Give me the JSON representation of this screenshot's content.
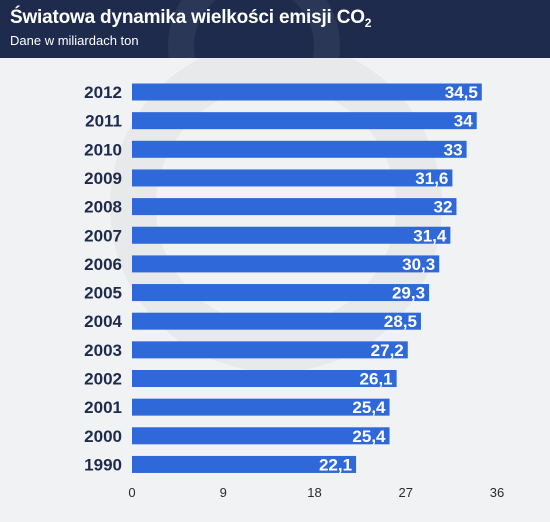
{
  "header": {
    "title_main": "Światowa dynamika wielkości emisji CO",
    "title_sub": "2",
    "subtitle": "Dane w miliardach ton"
  },
  "colors": {
    "bar": "#2f68d8",
    "header_bg": "#1e2b4d",
    "background": "#f1f2f3",
    "label_text": "#1e2b4d",
    "value_text": "#ffffff"
  },
  "chart_data": {
    "type": "bar",
    "orientation": "horizontal",
    "title": "Światowa dynamika wielkości emisji CO2",
    "subtitle": "Dane w miliardach ton",
    "categories": [
      "2012",
      "2011",
      "2010",
      "2009",
      "2008",
      "2007",
      "2006",
      "2005",
      "2004",
      "2003",
      "2002",
      "2001",
      "2000",
      "1990"
    ],
    "values": [
      34.5,
      34,
      33,
      31.6,
      32,
      31.4,
      30.3,
      29.3,
      28.5,
      27.2,
      26.1,
      25.4,
      25.4,
      22.1
    ],
    "value_labels": [
      "34,5",
      "34",
      "33",
      "31,6",
      "32",
      "31,4",
      "30,3",
      "29,3",
      "28,5",
      "27,2",
      "26,1",
      "25,4",
      "25,4",
      "22,1"
    ],
    "xticks": [
      0,
      9,
      18,
      27,
      36
    ],
    "xtick_labels": [
      "0",
      "9",
      "18",
      "27",
      "36"
    ],
    "xlim": [
      0,
      36
    ],
    "grid": false,
    "legend": "none"
  }
}
